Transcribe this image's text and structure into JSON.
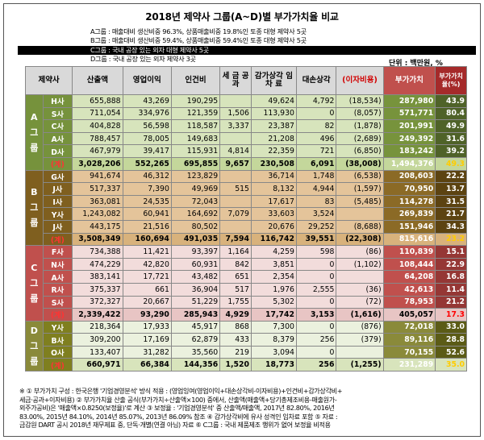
{
  "title": "2018년 제약사 그룹(A~D)별 부가가치율 비교",
  "legend": [
    "A그룹 : 매출대비 생산비중 96.3%, 상품매출비중 19.8%인 토종 대형 제약사 5곳",
    "B그룹 : 매출대비 생산비중 59.4%, 상품매출비중 59.4%인 토종 대형 제약사 5곳",
    "C그룹 : 국내 공장 있는 외자 대형 제약사 5곳",
    "D그룹 : 국내 공장 있는 외자 제약사 3곳"
  ],
  "unit": "단위 : 백만원, %",
  "headers": [
    "제약사",
    "산출액",
    "영업이익",
    "인건비",
    "세 금 공 과",
    "감가상각 임 차 료",
    "대손상각",
    "(이자비용)",
    "부가가치",
    "부가가치율(%)"
  ],
  "groups": [
    {
      "label": "A 그 룹",
      "rows": [
        [
          "H사",
          "655,888",
          "43,269",
          "190,295",
          "",
          "49,624",
          "4,792",
          "(18,534)",
          "287,980",
          "43.9"
        ],
        [
          "S사",
          "711,054",
          "334,976",
          "121,359",
          "1,506",
          "113,930",
          "0",
          "(8,057)",
          "571,771",
          "80.4"
        ],
        [
          "C사",
          "404,828",
          "56,598",
          "118,587",
          "3,337",
          "23,387",
          "82",
          "(1,878)",
          "201,991",
          "49.9"
        ],
        [
          "A사",
          "788,457",
          "78,005",
          "149,683",
          "",
          "21,208",
          "496",
          "(2,689)",
          "249,392",
          "31.6"
        ],
        [
          "D사",
          "467,979",
          "39,417",
          "115,931",
          "4,814",
          "22,359",
          "721",
          "(6,850)",
          "183,242",
          "39.2"
        ]
      ],
      "sum": [
        "(계)",
        "3,028,206",
        "552,265",
        "695,855",
        "9,657",
        "230,508",
        "6,091",
        "(38,008)",
        "1,494,376",
        "49.3"
      ]
    },
    {
      "label": "B 그 룹",
      "rows": [
        [
          "G사",
          "941,674",
          "46,312",
          "123,829",
          "",
          "36,714",
          "1,748",
          "(6,538)",
          "208,603",
          "22.2"
        ],
        [
          "J사",
          "517,337",
          "7,390",
          "49,969",
          "515",
          "8,132",
          "4,944",
          "(1,597)",
          "70,950",
          "13.7"
        ],
        [
          "I사",
          "363,081",
          "24,535",
          "72,043",
          "",
          "17,617",
          "83",
          "(5,485)",
          "114,278",
          "31.5"
        ],
        [
          "Y사",
          "1,243,082",
          "60,941",
          "164,692",
          "7,079",
          "33,603",
          "3,524",
          "",
          "269,839",
          "21.7"
        ],
        [
          "J사",
          "443,175",
          "21,516",
          "80,502",
          "",
          "20,676",
          "29,252",
          "(8,688)",
          "151,946",
          "34.3"
        ]
      ],
      "sum": [
        "(계)",
        "3,508,349",
        "160,694",
        "491,035",
        "7,594",
        "116,742",
        "39,551",
        "(22,308)",
        "815,616",
        "23.2"
      ]
    },
    {
      "label": "C 그 룹",
      "rows": [
        [
          "F사",
          "734,388",
          "11,421",
          "93,397",
          "1,164",
          "4,259",
          "598",
          "(86)",
          "110,839",
          "15.1"
        ],
        [
          "N사",
          "474,229",
          "42,820",
          "60,931",
          "842",
          "3,851",
          "0",
          "(1,102)",
          "108,444",
          "22.9"
        ],
        [
          "A사",
          "383,141",
          "17,721",
          "43,482",
          "651",
          "2,354",
          "0",
          "",
          "64,208",
          "16.8"
        ],
        [
          "R사",
          "375,337",
          "661",
          "36,904",
          "517",
          "1,976",
          "2,555",
          "(36)",
          "42,613",
          "11.4"
        ],
        [
          "S사",
          "372,327",
          "20,667",
          "51,229",
          "1,755",
          "5,302",
          "0",
          "(72)",
          "78,953",
          "21.2"
        ]
      ],
      "sum": [
        "(계)",
        "2,339,422",
        "93,290",
        "285,943",
        "4,929",
        "17,742",
        "3,153",
        "(1,616)",
        "405,057",
        "17.3"
      ]
    },
    {
      "label": "D 그 룹",
      "rows": [
        [
          "Y사",
          "218,364",
          "17,933",
          "45,917",
          "868",
          "7,300",
          "0",
          "(876)",
          "72,018",
          "33.0"
        ],
        [
          "B사",
          "309,200",
          "17,169",
          "62,879",
          "433",
          "8,379",
          "256",
          "(379)",
          "89,116",
          "28.8"
        ],
        [
          "O사",
          "133,407",
          "31,282",
          "35,560",
          "219",
          "3,094",
          "0",
          "",
          "70,155",
          "52.6"
        ]
      ],
      "sum": [
        "(계)",
        "660,971",
        "66,384",
        "144,356",
        "1,520",
        "18,773",
        "256",
        "(1,255)",
        "231,289",
        "35.0"
      ]
    }
  ],
  "notes": [
    "※ ① 부가가치 구성 : 한국은행 '기업경영분석' 방식 적용 : (영업잉여(영업이익+대손상각비-이자비용)+인건비+감가상각비+",
    "세금·공과+이자비용) ② 부가가치율 산출 공식(부가가치÷산출액×100) 중에서, 산출액(매출액+당기총제조비용-매출원가-",
    "외주가공비)은 '매출액×0.8250(보정율)'로 계산 ③ 보정율 : '기업경영분석' 중 산출액/매출액, 2017년 82.80%, 2016년",
    "83.00%, 2015년 84.10%, 2014년 85.07%, 2013년 86.09% 참조 ④ 감가상각비에 유사 성격인 임차료 포함 ⑤ 자료 :",
    "금감원 DART 공시 2018년 재무제표 중, 단독·개별(연결 아님) 자료 ⑥ C그룹 : 국내 제품제조 행위가 없어 보정율 비적용"
  ]
}
